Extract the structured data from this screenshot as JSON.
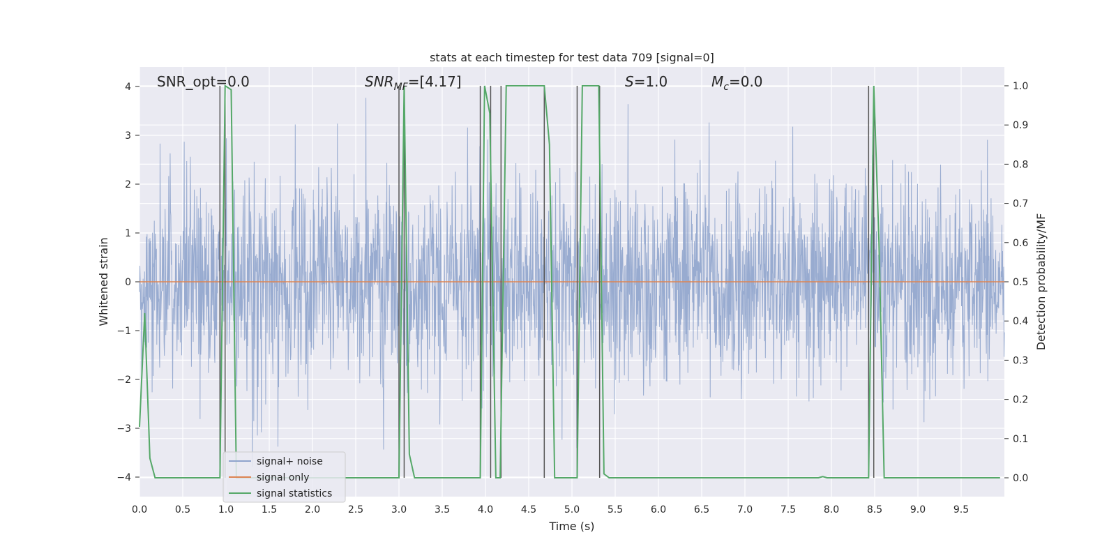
{
  "chart_data": {
    "type": "line",
    "title": "stats at each timestep for test data 709 [signal=0]",
    "xlabel": "Time (s)",
    "ylabel": "Whitened strain",
    "ylabel_right": "Detection probability/MF",
    "xlim": [
      0.0,
      10.0
    ],
    "ylim": [
      -4.4,
      4.4
    ],
    "ylim_right": [
      -0.048,
      1.048
    ],
    "x_ticks": [
      "0.0",
      "0.5",
      "1.0",
      "1.5",
      "2.0",
      "2.5",
      "3.0",
      "3.5",
      "4.0",
      "4.5",
      "5.0",
      "5.5",
      "6.0",
      "6.5",
      "7.0",
      "7.5",
      "8.0",
      "8.5",
      "9.0",
      "9.5"
    ],
    "y_ticks": [
      "4",
      "3",
      "2",
      "1",
      "0",
      "−1",
      "−2",
      "−3",
      "−4"
    ],
    "y_ticks_right": [
      "1.0",
      "0.9",
      "0.8",
      "0.7",
      "0.6",
      "0.5",
      "0.4",
      "0.3",
      "0.2",
      "0.1",
      "0.0"
    ],
    "grid": true,
    "legend_position": "lower-left",
    "annotations": {
      "snr_opt": "SNR_opt=0.0",
      "snr_mf_name": "SNR",
      "snr_mf_sub": "MF",
      "snr_mf_value": "=[4.17]",
      "s_name": "S",
      "s_value": "=1.0",
      "mc_name": "M",
      "mc_sub": "c",
      "mc_value": "=0.0"
    },
    "series": [
      {
        "name": "signal+ noise",
        "color": "#8fa4cc",
        "kind": "noise",
        "envelope": {
          "typical_abs": 1.7,
          "max": 4.02,
          "min": -3.95
        }
      },
      {
        "name": "signal only",
        "color": "#dd8452",
        "x": [
          0.0,
          10.0
        ],
        "y": [
          0.0,
          0.0
        ]
      },
      {
        "name": "signal statistics",
        "color": "#55a868",
        "axis": "right",
        "x": [
          0.0,
          0.06,
          0.12,
          0.18,
          0.93,
          0.99,
          1.06,
          1.12,
          3.0,
          3.06,
          3.12,
          3.18,
          3.94,
          3.99,
          4.05,
          4.12,
          4.17,
          4.24,
          4.68,
          4.74,
          4.8,
          5.06,
          5.12,
          5.31,
          5.37,
          5.43,
          7.85,
          7.9,
          7.95,
          8.43,
          8.49,
          8.55,
          8.61,
          9.95
        ],
        "y": [
          0.13,
          0.42,
          0.05,
          0.0,
          0.0,
          1.0,
          0.99,
          0.0,
          0.0,
          1.0,
          0.06,
          0.0,
          0.0,
          1.0,
          0.93,
          0.0,
          0.0,
          1.0,
          1.0,
          0.85,
          0.0,
          0.0,
          1.0,
          1.0,
          0.01,
          0.0,
          0.0,
          0.003,
          0.0,
          0.0,
          1.0,
          0.6,
          0.0,
          0.0
        ]
      }
    ],
    "vertical_markers": [
      0.93,
      0.99,
      3.0,
      3.06,
      3.94,
      4.06,
      4.18,
      4.68,
      5.06,
      5.32,
      8.43,
      8.49
    ],
    "marker_color": "#555555"
  }
}
